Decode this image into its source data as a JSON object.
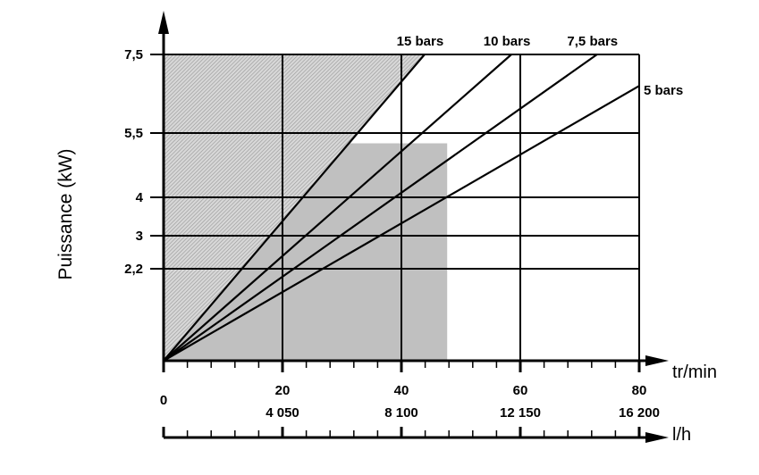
{
  "chart_data": {
    "type": "line",
    "xlabel": "tr/min",
    "x2label": "l/h",
    "ylabel": "Puissance (kW)",
    "xlim": [
      0,
      80
    ],
    "ylim": [
      0,
      7.5
    ],
    "x_ticks": [
      0,
      20,
      40,
      60,
      80
    ],
    "x_tick_labels": [
      "0",
      "20",
      "40",
      "60",
      "80"
    ],
    "x2_tick_labels": [
      "4 050",
      "8 100",
      "12 150",
      "16 200"
    ],
    "x_minor_tick_step": 4,
    "y_ticks": [
      2.2,
      3,
      4,
      5.5,
      7.5
    ],
    "y_tick_labels": [
      "2,2",
      "3",
      "4",
      "5,5",
      "7,5"
    ],
    "grid": true,
    "series": [
      {
        "name": "15 bars",
        "x": [
          0,
          43.9
        ],
        "y": [
          0,
          7.5
        ]
      },
      {
        "name": "10 bars",
        "x": [
          0,
          58.5
        ],
        "y": [
          0,
          7.5
        ]
      },
      {
        "name": "7,5 bars",
        "x": [
          0,
          72.9
        ],
        "y": [
          0,
          7.5
        ]
      },
      {
        "name": "5 bars",
        "x": [
          0,
          80
        ],
        "y": [
          0,
          6.7
        ]
      }
    ],
    "regions": [
      {
        "kind": "solid",
        "color": "#c0c0c0",
        "x": [
          0,
          47.7
        ],
        "y": [
          0,
          5.26
        ]
      },
      {
        "kind": "hatched",
        "color": "#a0a0a0",
        "bounded_by": "15 bars",
        "y_max": 7.5
      }
    ]
  }
}
